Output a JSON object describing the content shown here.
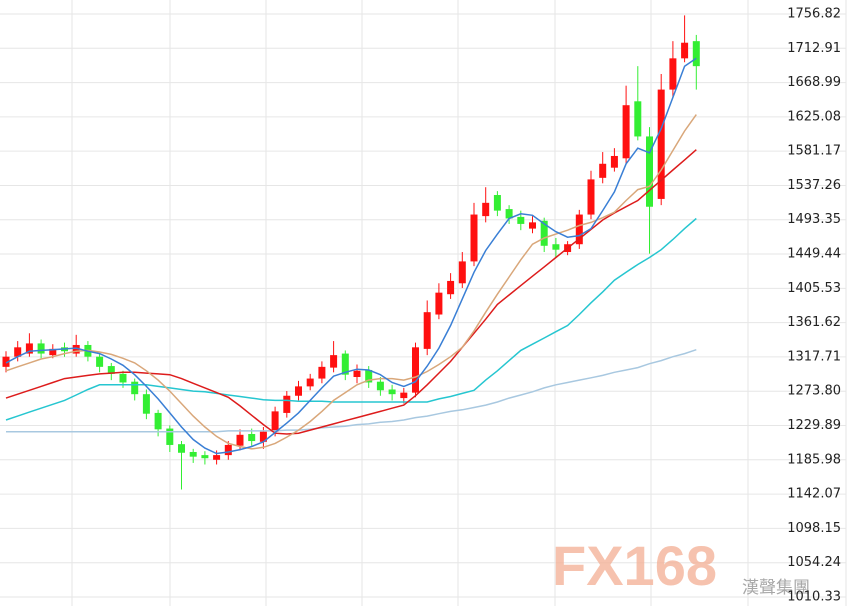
{
  "chart_data": {
    "type": "candlestick",
    "ylim": [
      998.8,
      1774.7
    ],
    "yticks": [
      1756.82,
      1712.91,
      1668.99,
      1625.08,
      1581.17,
      1537.26,
      1493.35,
      1449.44,
      1405.53,
      1361.62,
      1317.71,
      {
        "value": 1273.8,
        "label": "1273.80"
      },
      1229.89,
      1185.98,
      1142.07,
      1098.15,
      1054.24,
      1010.33
    ],
    "grid": true,
    "up_color": "#ff1010",
    "down_color": "#33ee33",
    "open": [
      1305,
      1318,
      1322,
      1335,
      1320,
      1330,
      1322,
      1333,
      1318,
      1306,
      1296,
      1286,
      1270,
      1246,
      1226,
      1206,
      1196,
      1192,
      1186,
      1192,
      1204,
      1219,
      1209,
      1222,
      1246,
      1268,
      1280,
      1290,
      1304,
      1322,
      1292,
      1301,
      1286,
      1276,
      1265,
      1272,
      1328,
      1372,
      1398,
      1412,
      1440,
      1498,
      1525,
      1507,
      1497,
      1482,
      1492,
      1462,
      1452,
      1462,
      1500,
      1547,
      1560,
      1572,
      1645,
      1600,
      1520,
      1660,
      1700,
      1722
    ],
    "high": [
      1325,
      1338,
      1348,
      1340,
      1334,
      1336,
      1346,
      1338,
      1322,
      1310,
      1300,
      1290,
      1276,
      1250,
      1230,
      1210,
      1200,
      1197,
      1198,
      1210,
      1225,
      1226,
      1228,
      1254,
      1274,
      1287,
      1296,
      1312,
      1338,
      1326,
      1308,
      1306,
      1292,
      1282,
      1278,
      1336,
      1390,
      1412,
      1425,
      1452,
      1515,
      1535,
      1530,
      1512,
      1505,
      1498,
      1496,
      1470,
      1466,
      1506,
      1556,
      1580,
      1585,
      1665,
      1690,
      1612,
      1680,
      1722,
      1755,
      1730
    ],
    "low": [
      1298,
      1312,
      1318,
      1316,
      1316,
      1318,
      1318,
      1312,
      1298,
      1288,
      1278,
      1262,
      1238,
      1216,
      1196,
      1148,
      1182,
      1180,
      1180,
      1186,
      1198,
      1204,
      1200,
      1216,
      1240,
      1262,
      1275,
      1284,
      1298,
      1288,
      1284,
      1278,
      1268,
      1262,
      1258,
      1266,
      1320,
      1366,
      1392,
      1406,
      1434,
      1490,
      1498,
      1488,
      1480,
      1476,
      1452,
      1445,
      1448,
      1456,
      1494,
      1540,
      1555,
      1565,
      1595,
      1450,
      1512,
      1650,
      1695,
      1660
    ],
    "close": [
      1318,
      1330,
      1335,
      1322,
      1328,
      1325,
      1333,
      1318,
      1305,
      1296,
      1285,
      1270,
      1245,
      1225,
      1205,
      1195,
      1190,
      1188,
      1192,
      1205,
      1218,
      1210,
      1222,
      1248,
      1268,
      1280,
      1290,
      1305,
      1320,
      1295,
      1300,
      1285,
      1275,
      1270,
      1272,
      1330,
      1375,
      1400,
      1415,
      1440,
      1500,
      1515,
      1505,
      1495,
      1488,
      1490,
      1460,
      1455,
      1462,
      1500,
      1545,
      1565,
      1575,
      1640,
      1600,
      1510,
      1660,
      1700,
      1720,
      1690
    ],
    "lines": [
      {
        "color": "#a8c8e0",
        "values": [
          1222,
          1222,
          1222,
          1222,
          1222,
          1222,
          1222,
          1222,
          1222,
          1222,
          1222,
          1222,
          1222,
          1222,
          1222,
          1222,
          1222,
          1222,
          1222,
          1223,
          1223,
          1223,
          1223,
          1223,
          1224,
          1224,
          1225,
          1227,
          1228,
          1229,
          1231,
          1232,
          1234,
          1235,
          1237,
          1240,
          1242,
          1245,
          1248,
          1250,
          1253,
          1256,
          1260,
          1265,
          1269,
          1273,
          1278,
          1282,
          1285,
          1288,
          1291,
          1294,
          1298,
          1301,
          1304,
          1309,
          1313,
          1318,
          1322,
          1327
        ]
      },
      {
        "color": "#26c6d0",
        "values": [
          1237,
          1242,
          1247,
          1252,
          1257,
          1262,
          1269,
          1276,
          1282,
          1282,
          1282,
          1282,
          1282,
          1280,
          1278,
          1276,
          1274,
          1273,
          1271,
          1269,
          1267,
          1265,
          1263,
          1262,
          1262,
          1261,
          1261,
          1261,
          1260,
          1260,
          1260,
          1260,
          1260,
          1260,
          1260,
          1260,
          1260,
          1264,
          1267,
          1271,
          1275,
          1288,
          1300,
          1313,
          1326,
          1334,
          1342,
          1350,
          1358,
          1372,
          1387,
          1401,
          1416,
          1426,
          1436,
          1445,
          1455,
          1468,
          1482,
          1495
        ]
      },
      {
        "color": "#dd1c1c",
        "values": [
          1265,
          1270,
          1275,
          1280,
          1285,
          1290,
          1292,
          1294,
          1296,
          1297,
          1298,
          1298,
          1297,
          1296,
          1295,
          1290,
          1284,
          1278,
          1272,
          1266,
          1255,
          1243,
          1231,
          1220,
          1219,
          1220,
          1224,
          1228,
          1232,
          1236,
          1240,
          1244,
          1248,
          1252,
          1256,
          1268,
          1282,
          1297,
          1312,
          1330,
          1348,
          1366,
          1385,
          1397,
          1409,
          1421,
          1433,
          1445,
          1457,
          1469,
          1481,
          1493,
          1502,
          1510,
          1518,
          1531,
          1544,
          1557,
          1570,
          1583
        ]
      },
      {
        "color": "#d9a77a",
        "values": [
          1300,
          1305,
          1310,
          1315,
          1318,
          1322,
          1325,
          1326,
          1324,
          1321,
          1316,
          1310,
          1300,
          1288,
          1274,
          1258,
          1242,
          1228,
          1216,
          1207,
          1203,
          1200,
          1202,
          1207,
          1215,
          1224,
          1235,
          1248,
          1262,
          1272,
          1282,
          1288,
          1290,
          1290,
          1288,
          1292,
          1299,
          1308,
          1318,
          1330,
          1351,
          1375,
          1398,
          1420,
          1442,
          1462,
          1470,
          1475,
          1480,
          1486,
          1490,
          1496,
          1503,
          1518,
          1532,
          1536,
          1557,
          1582,
          1607,
          1628
        ]
      },
      {
        "color": "#3a7fd5",
        "values": [
          1310,
          1318,
          1325,
          1326,
          1327,
          1328,
          1329,
          1325,
          1322,
          1315,
          1307,
          1295,
          1280,
          1264,
          1246,
          1228,
          1212,
          1201,
          1194,
          1196,
          1199,
          1203,
          1209,
          1221,
          1233,
          1246,
          1262,
          1278,
          1293,
          1298,
          1302,
          1301,
          1295,
          1285,
          1280,
          1286,
          1306,
          1329,
          1358,
          1392,
          1426,
          1454,
          1475,
          1495,
          1501,
          1499,
          1488,
          1478,
          1471,
          1473,
          1482,
          1505,
          1529,
          1565,
          1585,
          1579,
          1610,
          1650,
          1690,
          1700
        ]
      }
    ]
  },
  "watermark": {
    "logo": "FX168",
    "company": "漢聲集團"
  }
}
